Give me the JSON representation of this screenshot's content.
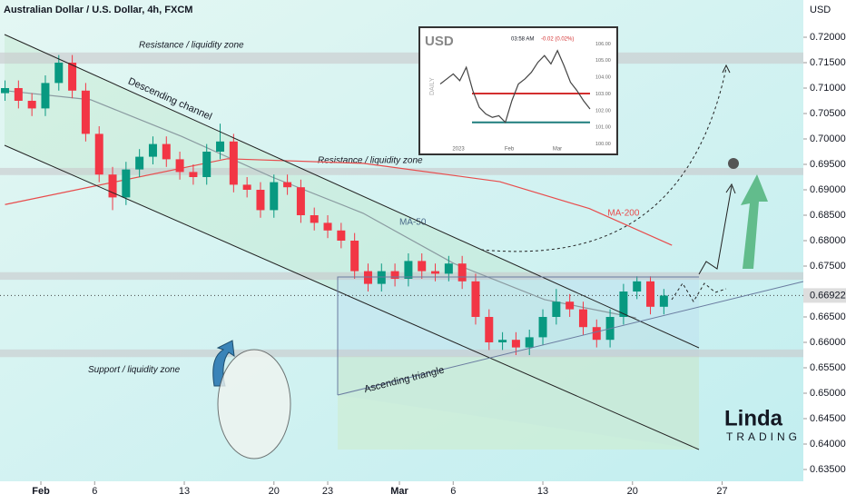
{
  "chart_data": {
    "type": "candlestick",
    "title": "Australian Dollar / U.S. Dollar, 4h, FXCM",
    "y_axis_label": "USD",
    "xlim": [
      -2.28,
      42.53
    ],
    "ylim": [
      0.63268,
      0.72732
    ],
    "xticks": [
      {
        "value": 0,
        "label": "Feb"
      },
      {
        "value": 3,
        "label": "6"
      },
      {
        "value": 8,
        "label": "13"
      },
      {
        "value": 13,
        "label": "20"
      },
      {
        "value": 16,
        "label": "23"
      },
      {
        "value": 20,
        "label": "Mar"
      },
      {
        "value": 23,
        "label": "6"
      },
      {
        "value": 28,
        "label": "13"
      },
      {
        "value": 33,
        "label": "20"
      },
      {
        "value": 38,
        "label": "27"
      }
    ],
    "yticks": [
      {
        "value": 0.72,
        "label": "0.72000"
      },
      {
        "value": 0.715,
        "label": "0.71500"
      },
      {
        "value": 0.71,
        "label": "0.71000"
      },
      {
        "value": 0.705,
        "label": "0.70500"
      },
      {
        "value": 0.7,
        "label": "0.70000"
      },
      {
        "value": 0.695,
        "label": "0.69500"
      },
      {
        "value": 0.69,
        "label": "0.69000"
      },
      {
        "value": 0.685,
        "label": "0.68500"
      },
      {
        "value": 0.68,
        "label": "0.68000"
      },
      {
        "value": 0.675,
        "label": "0.67500"
      },
      {
        "value": 0.665,
        "label": "0.66500"
      },
      {
        "value": 0.66,
        "label": "0.66000"
      },
      {
        "value": 0.655,
        "label": "0.65500"
      },
      {
        "value": 0.65,
        "label": "0.65000"
      },
      {
        "value": 0.645,
        "label": "0.64500"
      },
      {
        "value": 0.64,
        "label": "0.64000"
      },
      {
        "value": 0.635,
        "label": "0.63500"
      }
    ],
    "up_color": "#089981",
    "down_color": "#f23645",
    "x": [
      -2,
      -1.25,
      -0.5,
      0.25,
      1,
      1.75,
      2.5,
      3.25,
      4,
      4.75,
      5.5,
      6.25,
      7,
      7.75,
      8.5,
      9.25,
      10,
      10.75,
      11.5,
      12.25,
      13,
      13.75,
      14.5,
      15.25,
      16,
      16.75,
      17.5,
      18.25,
      19,
      19.75,
      20.5,
      21.25,
      22,
      22.75,
      23.5,
      24.25,
      25,
      25.75,
      26.5,
      27.25,
      28,
      28.75,
      29.5,
      30.25,
      31,
      31.75,
      32.5,
      33.25,
      34,
      34.75
    ],
    "open": [
      0.709,
      0.71,
      0.7075,
      0.706,
      0.711,
      0.715,
      0.7095,
      0.701,
      0.693,
      0.6885,
      0.694,
      0.6965,
      0.699,
      0.696,
      0.6935,
      0.6925,
      0.6975,
      0.6995,
      0.691,
      0.69,
      0.686,
      0.6915,
      0.6905,
      0.685,
      0.6835,
      0.682,
      0.68,
      0.674,
      0.6715,
      0.674,
      0.6725,
      0.676,
      0.674,
      0.6735,
      0.6755,
      0.672,
      0.665,
      0.66,
      0.6605,
      0.659,
      0.661,
      0.665,
      0.668,
      0.6665,
      0.663,
      0.6605,
      0.665,
      0.67,
      0.672,
      0.667
    ],
    "high": [
      0.7115,
      0.7115,
      0.709,
      0.7125,
      0.7165,
      0.7165,
      0.711,
      0.7025,
      0.6945,
      0.6955,
      0.698,
      0.7005,
      0.7005,
      0.6975,
      0.695,
      0.699,
      0.703,
      0.701,
      0.6925,
      0.6915,
      0.693,
      0.693,
      0.692,
      0.6865,
      0.685,
      0.6835,
      0.6815,
      0.6755,
      0.6755,
      0.6755,
      0.6775,
      0.6775,
      0.6755,
      0.677,
      0.677,
      0.6735,
      0.6665,
      0.662,
      0.662,
      0.6625,
      0.6665,
      0.6705,
      0.6695,
      0.668,
      0.6645,
      0.6665,
      0.6715,
      0.673,
      0.673,
      0.6705
    ],
    "low": [
      0.7075,
      0.706,
      0.7045,
      0.7045,
      0.7095,
      0.708,
      0.6995,
      0.6915,
      0.686,
      0.687,
      0.6925,
      0.695,
      0.6945,
      0.692,
      0.691,
      0.691,
      0.696,
      0.6895,
      0.6885,
      0.6845,
      0.6845,
      0.689,
      0.6835,
      0.682,
      0.6805,
      0.6785,
      0.6725,
      0.67,
      0.67,
      0.671,
      0.671,
      0.6725,
      0.672,
      0.672,
      0.6705,
      0.6635,
      0.6585,
      0.6585,
      0.6575,
      0.6575,
      0.6595,
      0.6635,
      0.665,
      0.6615,
      0.659,
      0.659,
      0.6635,
      0.6685,
      0.6655,
      0.6655
    ],
    "close": [
      0.71,
      0.7075,
      0.706,
      0.711,
      0.715,
      0.7095,
      0.701,
      0.693,
      0.6885,
      0.694,
      0.6965,
      0.699,
      0.696,
      0.6935,
      0.6925,
      0.6975,
      0.6995,
      0.691,
      0.69,
      0.686,
      0.6915,
      0.6905,
      0.685,
      0.6835,
      0.682,
      0.68,
      0.674,
      0.6715,
      0.674,
      0.6725,
      0.676,
      0.674,
      0.6735,
      0.6755,
      0.672,
      0.665,
      0.66,
      0.6605,
      0.659,
      0.661,
      0.665,
      0.668,
      0.6665,
      0.663,
      0.6605,
      0.665,
      0.67,
      0.672,
      0.667,
      0.6692
    ],
    "lines": [
      {
        "name": "MA-200",
        "color": "#e84c4c",
        "x": [
          -2,
          10.4,
          18,
          25.6,
          30.6,
          35.2
        ],
        "values": [
          0.6871,
          0.6961,
          0.6952,
          0.6916,
          0.6863,
          0.6791
        ]
      },
      {
        "name": "MA-50",
        "color": "#8a9aa0",
        "x": [
          -2,
          2.78,
          7.85,
          12.9,
          17.97,
          23.04,
          28.1,
          33.2
        ],
        "values": [
          0.7095,
          0.7077,
          0.7005,
          0.6925,
          0.6854,
          0.6755,
          0.6684,
          0.6648
        ]
      }
    ],
    "zones": [
      {
        "label": "Resistance / liquidity zone",
        "range": [
          0.7148,
          0.717
        ]
      },
      {
        "label": "Resistance / liquidity zone",
        "range": [
          0.6929,
          0.6943
        ]
      },
      {
        "range": [
          0.6723,
          0.6738
        ]
      },
      {
        "label": "Support / liquidity zone",
        "range": [
          0.6571,
          0.6586
        ]
      }
    ],
    "last_price": {
      "value": 0.66922,
      "label": "0.66922"
    },
    "annotations": [
      "Descending channel",
      "Ascending triangle"
    ],
    "logo": [
      "Linda",
      "TRADING"
    ],
    "inset": {
      "title": "USD",
      "time": "03:58 AM",
      "change": "-0.02 (0.02%)",
      "period": "DAILY",
      "categories": [
        "2023",
        "Feb",
        "Mar"
      ],
      "ylim": [
        99.6,
        106.4
      ],
      "yticks": [
        {
          "value": 106,
          "label": "106.00"
        },
        {
          "value": 105,
          "label": "105.00"
        },
        {
          "value": 104,
          "label": "104.00"
        },
        {
          "value": 103,
          "label": "103.00"
        },
        {
          "value": 102,
          "label": "102.00"
        },
        {
          "value": 101,
          "label": "101.00"
        },
        {
          "value": 100,
          "label": "100.00"
        }
      ],
      "values": [
        103.6,
        103.9,
        104.2,
        103.8,
        104.6,
        103.2,
        102.2,
        101.8,
        101.6,
        101.7,
        101.3,
        102.6,
        103.6,
        103.9,
        104.3,
        104.9,
        105.3,
        104.8,
        105.6,
        104.7,
        103.7,
        103.2,
        102.6,
        102.1
      ],
      "levels": [
        {
          "value": 103.03,
          "color": "#d32f2f"
        },
        {
          "value": 101.3,
          "color": "#1e7d7d"
        }
      ]
    }
  }
}
